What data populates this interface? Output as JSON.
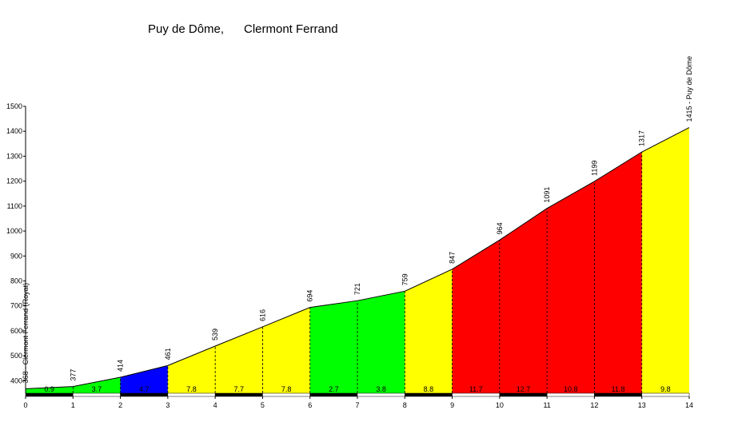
{
  "chart_data": {
    "type": "area",
    "title_left": "Puy de Dôme,",
    "title_right": "Clermont Ferrand",
    "x": [
      0,
      1,
      2,
      3,
      4,
      5,
      6,
      7,
      8,
      9,
      10,
      11,
      12,
      13,
      14
    ],
    "elevations": [
      368,
      377,
      414,
      461,
      539,
      616,
      694,
      721,
      759,
      847,
      964,
      1091,
      1199,
      1317,
      1415
    ],
    "elevation_labels": [
      "368 - Clermont Ferrand (Royat)",
      "377",
      "414",
      "461",
      "539",
      "616",
      "694",
      "721",
      "759",
      "847",
      "964",
      "1091",
      "1199",
      "1317",
      "1415 - Puy de Dôme"
    ],
    "gradients": [
      0.9,
      3.7,
      4.7,
      7.8,
      7.7,
      7.8,
      2.7,
      3.8,
      8.8,
      11.7,
      12.7,
      10.8,
      11.8,
      9.8
    ],
    "segment_colors": [
      "#00ff00",
      "#00ff00",
      "#0000ff",
      "#ffff00",
      "#ffff00",
      "#ffff00",
      "#00ff00",
      "#00ff00",
      "#ffff00",
      "#ff0000",
      "#ff0000",
      "#ff0000",
      "#ff0000",
      "#ffff00"
    ],
    "xlim": [
      0,
      14
    ],
    "ylim": [
      350,
      1500
    ],
    "xticks": [
      0,
      1,
      2,
      3,
      4,
      5,
      6,
      7,
      8,
      9,
      10,
      11,
      12,
      13,
      14
    ],
    "yticks": [
      400,
      500,
      600,
      700,
      800,
      900,
      1000,
      1100,
      1200,
      1300,
      1400,
      1500
    ]
  }
}
